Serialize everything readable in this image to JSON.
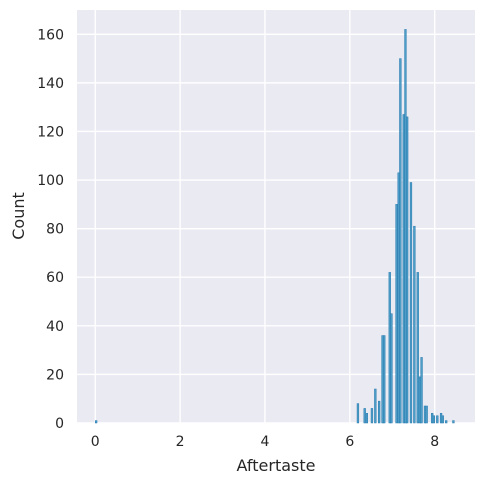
{
  "chart_data": {
    "type": "bar",
    "subtype": "histogram",
    "xlabel": "Aftertaste",
    "ylabel": "Count",
    "xlim": [
      -0.43,
      8.95
    ],
    "ylim": [
      0,
      170
    ],
    "xticks": [
      0,
      2,
      4,
      6,
      8
    ],
    "yticks": [
      0,
      20,
      40,
      60,
      80,
      100,
      120,
      140,
      160
    ],
    "grid": true,
    "bar_color": "#4c9ec7",
    "bar_edge_color": "#2b7bb0",
    "plot_background": "#eaeaf2",
    "grid_color": "#ffffff",
    "bin_width": 0.0418,
    "bins": [
      {
        "x": 0.0,
        "count": 1
      },
      {
        "x": 6.17,
        "count": 8
      },
      {
        "x": 6.33,
        "count": 6
      },
      {
        "x": 6.38,
        "count": 4
      },
      {
        "x": 6.5,
        "count": 6
      },
      {
        "x": 6.58,
        "count": 14
      },
      {
        "x": 6.67,
        "count": 9
      },
      {
        "x": 6.75,
        "count": 36
      },
      {
        "x": 6.79,
        "count": 36
      },
      {
        "x": 6.92,
        "count": 62
      },
      {
        "x": 6.96,
        "count": 45
      },
      {
        "x": 7.08,
        "count": 90
      },
      {
        "x": 7.13,
        "count": 103
      },
      {
        "x": 7.17,
        "count": 150
      },
      {
        "x": 7.25,
        "count": 127
      },
      {
        "x": 7.29,
        "count": 162
      },
      {
        "x": 7.33,
        "count": 126
      },
      {
        "x": 7.42,
        "count": 99
      },
      {
        "x": 7.5,
        "count": 81
      },
      {
        "x": 7.58,
        "count": 62
      },
      {
        "x": 7.63,
        "count": 19
      },
      {
        "x": 7.67,
        "count": 27
      },
      {
        "x": 7.75,
        "count": 7
      },
      {
        "x": 7.79,
        "count": 7
      },
      {
        "x": 7.92,
        "count": 4
      },
      {
        "x": 7.96,
        "count": 3
      },
      {
        "x": 8.04,
        "count": 3
      },
      {
        "x": 8.13,
        "count": 4
      },
      {
        "x": 8.17,
        "count": 3
      },
      {
        "x": 8.25,
        "count": 1
      },
      {
        "x": 8.42,
        "count": 1
      }
    ]
  }
}
